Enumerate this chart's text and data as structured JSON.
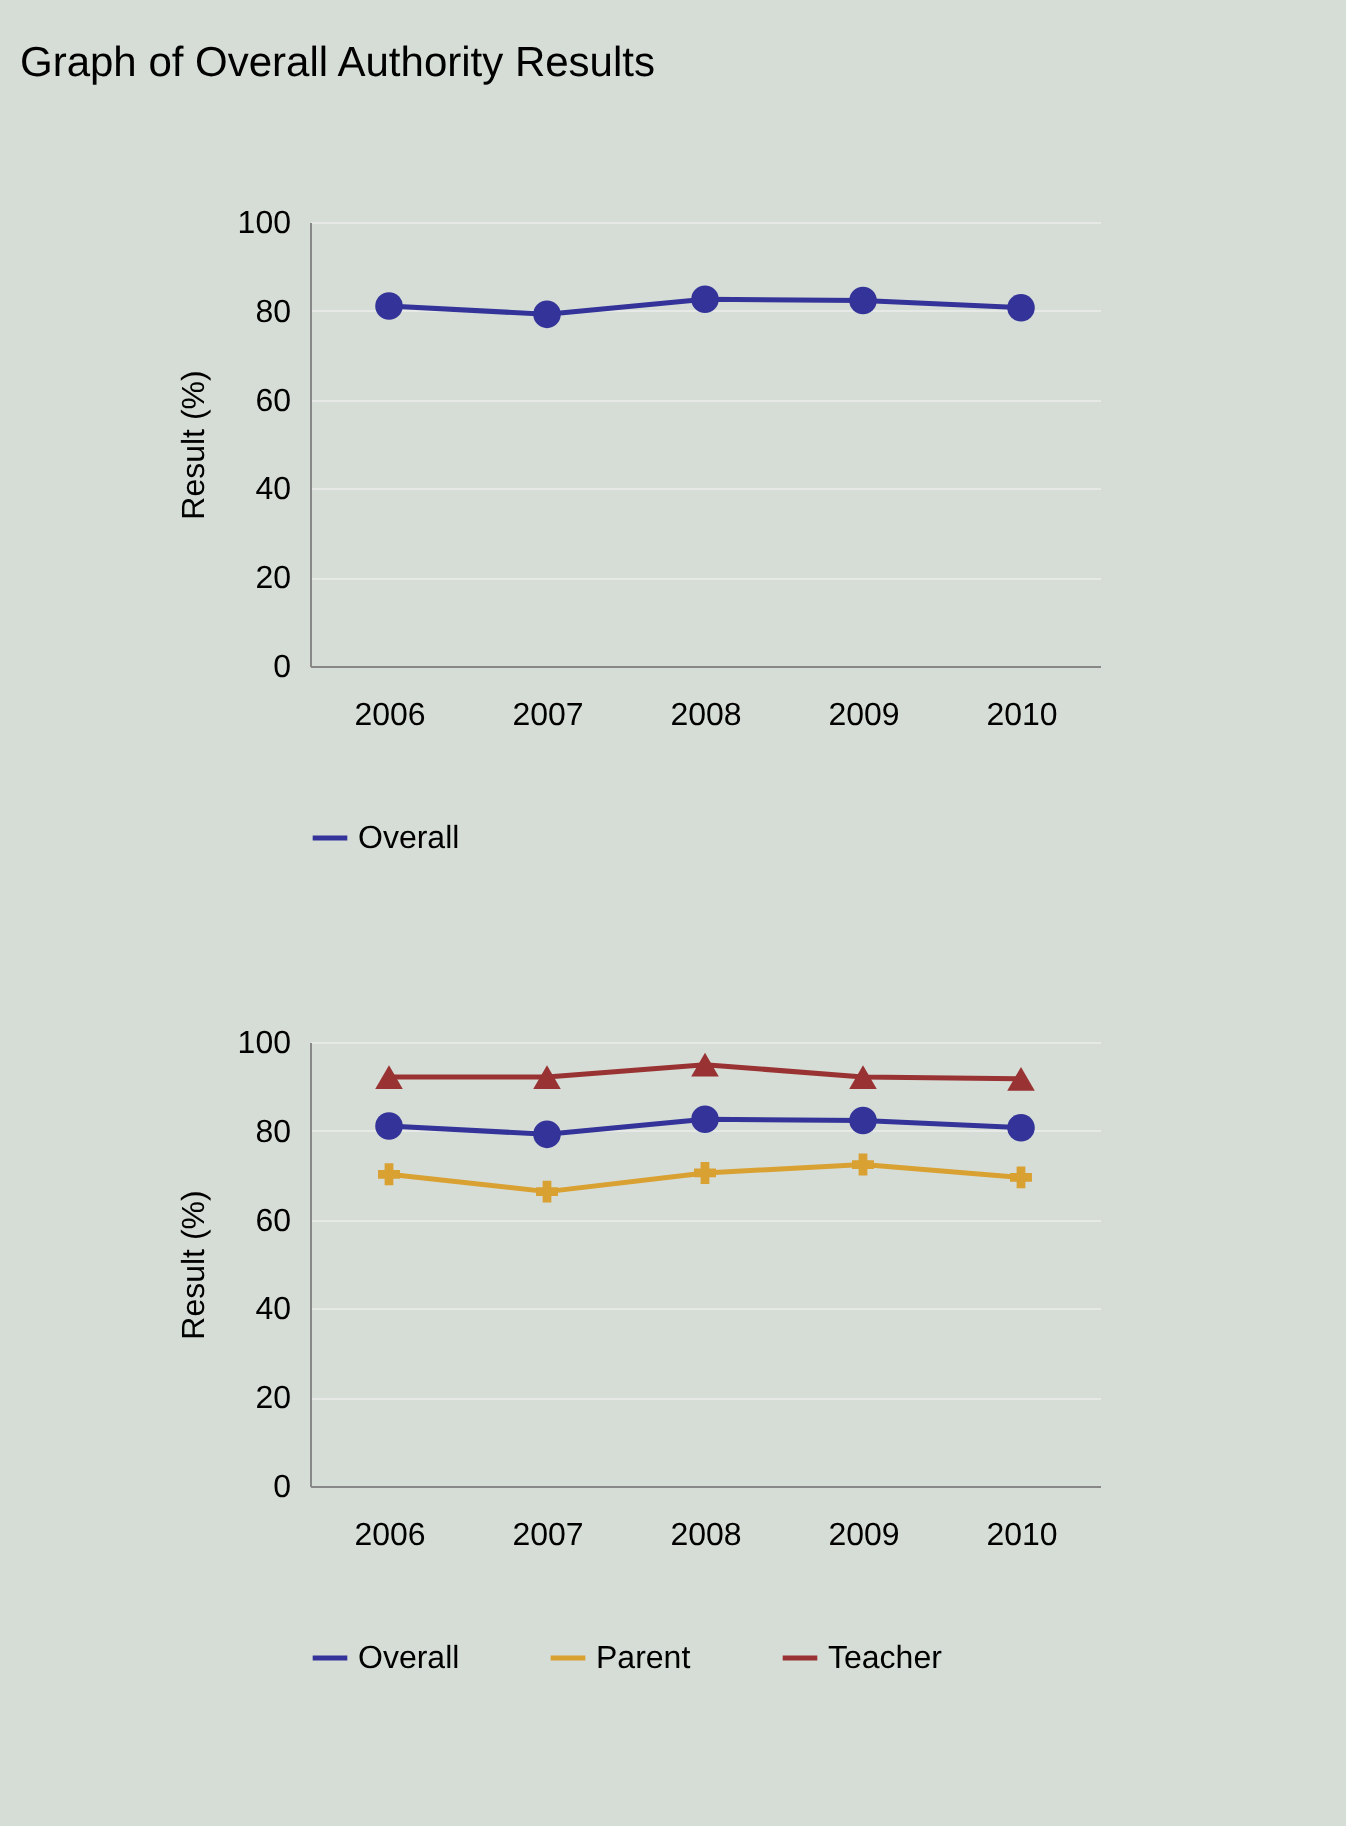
{
  "chart_data": [
    {
      "type": "line",
      "title": "Graph of Overall Authority Results",
      "ylabel": "Result (%)",
      "categories": [
        "2006",
        "2007",
        "2008",
        "2009",
        "2010"
      ],
      "series": [
        {
          "name": "Overall",
          "color": "#333399",
          "marker": "circle",
          "values": [
            81.1,
            79.2,
            82.6,
            82.3,
            80.7
          ]
        }
      ],
      "ylim": [
        0,
        100
      ],
      "yticks": [
        0,
        20,
        40,
        60,
        80,
        100
      ],
      "grid": "y",
      "legend": "bottom"
    },
    {
      "type": "line",
      "ylabel": "Result (%)",
      "categories": [
        "2006",
        "2007",
        "2008",
        "2009",
        "2010"
      ],
      "series": [
        {
          "name": "Overall",
          "color": "#333399",
          "marker": "circle",
          "values": [
            81.1,
            79.2,
            82.6,
            82.3,
            80.7
          ]
        },
        {
          "name": "Parent",
          "color": "#d9a032",
          "marker": "cross",
          "values": [
            70.2,
            66.3,
            70.5,
            72.4,
            69.5
          ]
        },
        {
          "name": "Teacher",
          "color": "#993333",
          "marker": "triangle",
          "values": [
            92.1,
            92.1,
            94.9,
            92.1,
            91.7
          ]
        }
      ],
      "ylim": [
        0,
        100
      ],
      "yticks": [
        0,
        20,
        40,
        60,
        80,
        100
      ],
      "grid": "y",
      "legend": "bottom"
    }
  ]
}
